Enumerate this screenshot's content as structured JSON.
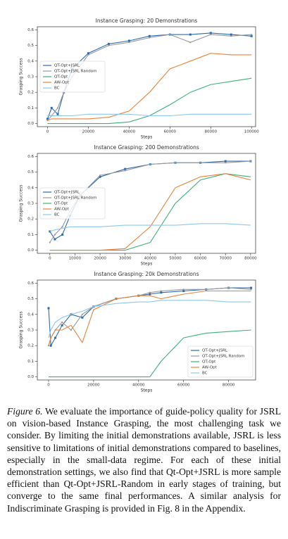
{
  "chart_data": [
    {
      "type": "line",
      "title": "Instance Grasping: 20 Demonstrations",
      "xlabel": "Steps",
      "ylabel": "Grasping Success",
      "xlim": [
        -5000,
        102000
      ],
      "xticks": [
        0,
        20000,
        40000,
        60000,
        80000,
        100000
      ],
      "ylim": [
        -0.02,
        0.62
      ],
      "yticks": [
        {
          "value": 0,
          "label": "0.0"
        },
        0.1,
        0.2,
        0.3,
        0.4,
        0.5,
        0.6
      ],
      "legend": "center left",
      "x": [
        0,
        2000,
        5000,
        8000,
        12000,
        20000,
        30000,
        40000,
        50000,
        60000,
        70000,
        80000,
        90000,
        100000
      ],
      "series": [
        {
          "name": "QT-Opt+JSRL",
          "color": "#2b6cb0",
          "marker": "square",
          "values": [
            0.03,
            0.1,
            0.06,
            0.2,
            0.35,
            0.45,
            0.51,
            0.53,
            0.56,
            0.57,
            0.57,
            0.58,
            0.57,
            0.56
          ]
        },
        {
          "name": "QT-Opt+JSRL Random",
          "color": "#9a9a9a",
          "marker": "dot",
          "values": [
            0.02,
            0.05,
            0.1,
            0.2,
            0.3,
            0.44,
            0.5,
            0.52,
            0.55,
            0.57,
            0.52,
            0.57,
            0.56,
            0.57
          ]
        },
        {
          "name": "QT-Opt",
          "color": "#3cb27a",
          "values": [
            0,
            0,
            0,
            0,
            0,
            0,
            0,
            0.01,
            0.05,
            0.12,
            0.2,
            0.25,
            0.27,
            0.29
          ]
        },
        {
          "name": "AW-Opt",
          "color": "#e8833a",
          "values": [
            0.02,
            0.03,
            0.03,
            0.03,
            0.03,
            0.03,
            0.04,
            0.08,
            0.2,
            0.35,
            0.4,
            0.45,
            0.44,
            0.44
          ]
        },
        {
          "name": "BC",
          "color": "#8cc8ee",
          "values": [
            0.05,
            0.05,
            0.05,
            0.05,
            0.05,
            0.06,
            0.06,
            0.06,
            0.05,
            0.05,
            0.06,
            0.06,
            0.06,
            0.06
          ]
        }
      ]
    },
    {
      "type": "line",
      "title": "Instance Grasping: 200 Demonstrations",
      "xlabel": "Steps",
      "ylabel": "Grasping Success",
      "xlim": [
        -5000,
        82000
      ],
      "xticks": [
        0,
        10000,
        20000,
        30000,
        40000,
        50000,
        60000,
        70000,
        80000
      ],
      "ylim": [
        -0.02,
        0.62
      ],
      "yticks": [
        {
          "value": 0,
          "label": "0.0"
        },
        0.1,
        0.2,
        0.3,
        0.4,
        0.5,
        0.6
      ],
      "legend": "center left",
      "x": [
        0,
        2000,
        5000,
        8000,
        12000,
        20000,
        30000,
        40000,
        50000,
        60000,
        70000,
        80000
      ],
      "series": [
        {
          "name": "QT-Opt+JSRL",
          "color": "#2b6cb0",
          "marker": "square",
          "values": [
            0.12,
            0.07,
            0.1,
            0.22,
            0.35,
            0.47,
            0.52,
            0.55,
            0.56,
            0.56,
            0.57,
            0.57
          ]
        },
        {
          "name": "QT-Opt+JSRL Random",
          "color": "#9a9a9a",
          "marker": "dot",
          "values": [
            0.05,
            0.1,
            0.15,
            0.25,
            0.35,
            0.48,
            0.51,
            0.55,
            0.56,
            0.56,
            0.56,
            0.57
          ]
        },
        {
          "name": "QT-Opt",
          "color": "#3cb27a",
          "values": [
            0,
            0,
            0,
            0,
            0,
            0,
            0,
            0.05,
            0.3,
            0.45,
            0.49,
            0.47
          ]
        },
        {
          "name": "AW-Opt",
          "color": "#e8833a",
          "values": [
            0,
            0,
            0,
            0,
            0,
            0,
            0.01,
            0.15,
            0.4,
            0.47,
            0.49,
            0.45
          ]
        },
        {
          "name": "BC",
          "color": "#8cc8ee",
          "values": [
            0.12,
            0.13,
            0.14,
            0.15,
            0.15,
            0.15,
            0.16,
            0.16,
            0.16,
            0.17,
            0.17,
            0.16
          ]
        }
      ]
    },
    {
      "type": "line",
      "title": "Instance Grasping: 20k Demonstrations",
      "xlabel": "Steps",
      "ylabel": "Grasping Success",
      "xlim": [
        -5000,
        92000
      ],
      "xticks": [
        0,
        20000,
        40000,
        60000,
        80000
      ],
      "ylim": [
        -0.02,
        0.62
      ],
      "yticks": [
        {
          "value": 0,
          "label": "0.0"
        },
        0.1,
        0.2,
        0.3,
        0.4,
        0.5,
        0.6
      ],
      "legend": "lower right",
      "x": [
        0,
        1000,
        3000,
        6000,
        10000,
        15000,
        20000,
        30000,
        40000,
        45000,
        50000,
        60000,
        70000,
        80000,
        90000
      ],
      "series": [
        {
          "name": "QT-Opt+JSRL",
          "color": "#2b6cb0",
          "marker": "square",
          "values": [
            0.44,
            0.2,
            0.25,
            0.33,
            0.4,
            0.38,
            0.45,
            0.5,
            0.52,
            0.53,
            0.54,
            0.55,
            0.56,
            0.57,
            0.57
          ]
        },
        {
          "name": "QT-Opt+JSRL Random",
          "color": "#9a9a9a",
          "marker": "dot",
          "values": [
            0.2,
            0.25,
            0.3,
            0.35,
            0.3,
            0.4,
            0.45,
            0.5,
            0.52,
            0.54,
            0.55,
            0.56,
            0.56,
            0.57,
            0.56
          ]
        },
        {
          "name": "QT-Opt",
          "color": "#3cb27a",
          "values": [
            0,
            0,
            0,
            0,
            0,
            0,
            0,
            0,
            0,
            0,
            0.1,
            0.25,
            0.28,
            0.29,
            0.3
          ]
        },
        {
          "name": "AW-Opt",
          "color": "#e8833a",
          "values": [
            0.2,
            0.25,
            0.3,
            0.3,
            0.33,
            0.22,
            0.43,
            0.5,
            0.52,
            0.52,
            0.5,
            0.53,
            0.55,
            0.55,
            0.55
          ]
        },
        {
          "name": "BC",
          "color": "#8cc8ee",
          "values": [
            0.25,
            0.3,
            0.35,
            0.38,
            0.4,
            0.42,
            0.45,
            0.47,
            0.48,
            0.48,
            0.49,
            0.49,
            0.49,
            0.48,
            0.48
          ]
        }
      ]
    }
  ],
  "caption": {
    "label": "Figure 6.",
    "text": "We evaluate the importance of guide-policy quality for JSRL on vision-based Instance Grasping, the most challenging task we consider. By limiting the initial demonstrations available, JSRL is less sensitive to limitations of initial demonstrations compared to baselines, especially in the small-data regime. For each of these initial demonstration settings, we also find that Qt-Opt+JSRL is more sample efficient than Qt-Opt+JSRL-Random in early stages of training, but converge to the same final performances. A similar analysis for Indiscriminate Grasping is provided in Fig. 8 in the Appendix."
  }
}
